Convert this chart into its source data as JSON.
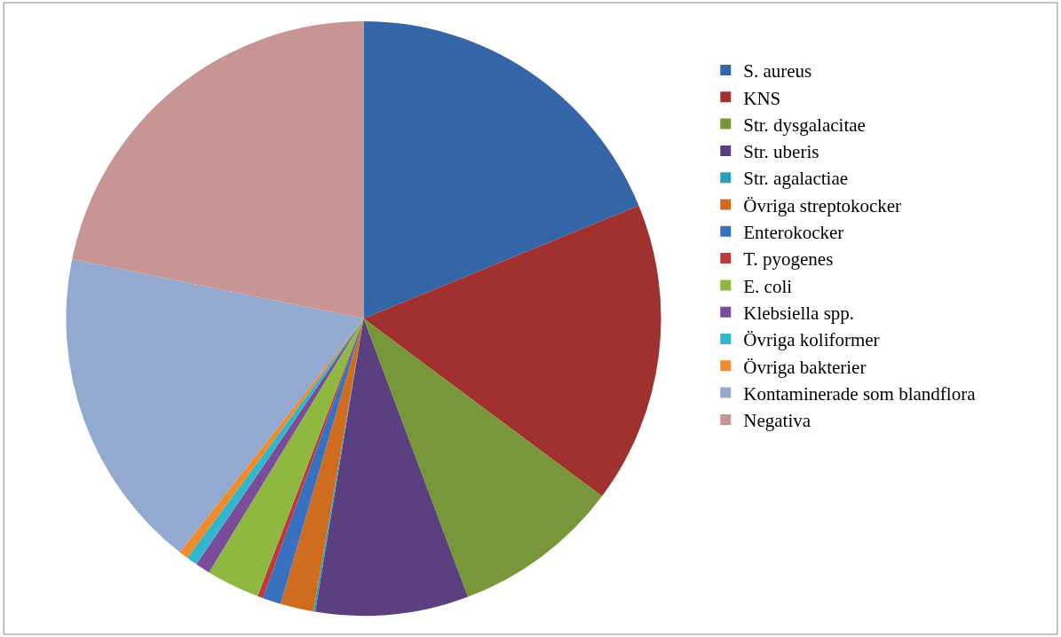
{
  "chart_data": {
    "type": "pie",
    "categories": [
      "S. aureus",
      "KNS",
      "Str. dysgalacitae",
      "Str. uberis",
      "Str. agalactiae",
      "Övriga streptokocker",
      "Enterokocker",
      "T. pyogenes",
      "E. coli",
      "Klebsiella spp.",
      "Övriga koliformer",
      "Övriga bakterier",
      "Kontaminerade som blandflora",
      "Negativa"
    ],
    "values": [
      18.8,
      16.4,
      9.1,
      8.3,
      0.1,
      1.8,
      1.0,
      0.3,
      2.9,
      0.8,
      0.6,
      0.5,
      17.6,
      21.8
    ],
    "colors": [
      "#3465a6",
      "#a0312e",
      "#77973a",
      "#5b3f7e",
      "#2aa0b8",
      "#d06c1e",
      "#3a70c0",
      "#c0393a",
      "#8fb841",
      "#7a4c9a",
      "#33b5cc",
      "#f08a2a",
      "#93a9cf",
      "#c79594"
    ],
    "legend": "right"
  }
}
